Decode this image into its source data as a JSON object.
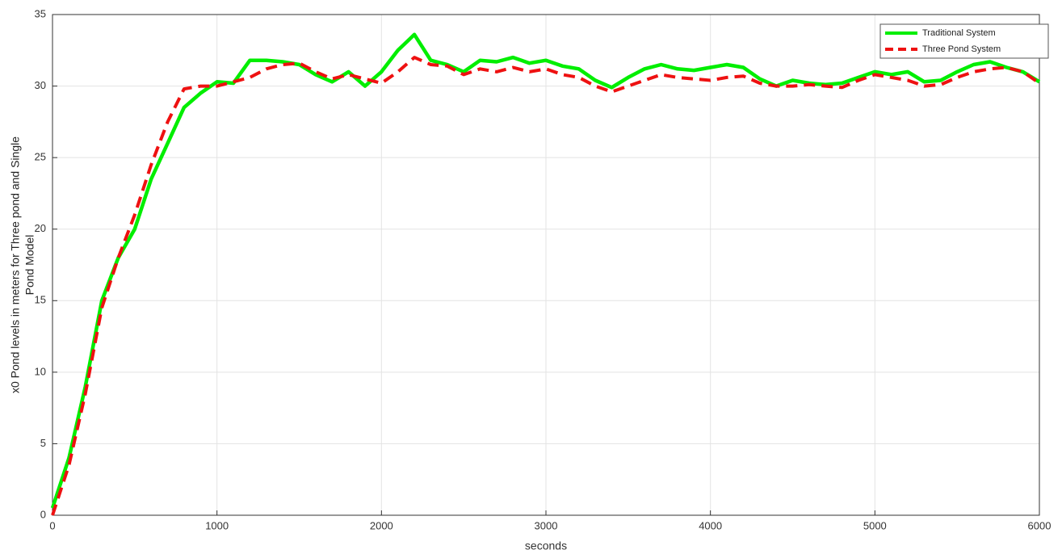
{
  "chart_data": {
    "type": "line",
    "xlabel": "seconds",
    "ylabel": [
      "x0 Pond levels in meters for Three pond and Single",
      "Pond Model"
    ],
    "x": [
      0,
      100,
      200,
      300,
      400,
      500,
      600,
      700,
      800,
      900,
      1000,
      1100,
      1200,
      1300,
      1400,
      1500,
      1600,
      1700,
      1800,
      1900,
      2000,
      2100,
      2200,
      2300,
      2400,
      2500,
      2600,
      2700,
      2800,
      2900,
      3000,
      3100,
      3200,
      3300,
      3400,
      3500,
      3600,
      3700,
      3800,
      3900,
      4000,
      4100,
      4200,
      4300,
      4400,
      4500,
      4600,
      4700,
      4800,
      4900,
      5000,
      5100,
      5200,
      5300,
      5400,
      5500,
      5600,
      5700,
      5800,
      5900,
      6000
    ],
    "series": [
      {
        "name": "Traditional System",
        "color": "#00ee00",
        "dash": false,
        "values": [
          0.5,
          4,
          9,
          15,
          18,
          20,
          23.5,
          26,
          28.5,
          29.5,
          30.3,
          30.2,
          31.8,
          31.8,
          31.7,
          31.5,
          30.8,
          30.3,
          31,
          30,
          31,
          32.5,
          33.6,
          31.8,
          31.5,
          31,
          31.8,
          31.7,
          32,
          31.6,
          31.8,
          31.4,
          31.2,
          30.4,
          29.9,
          30.6,
          31.2,
          31.5,
          31.2,
          31.1,
          31.3,
          31.5,
          31.3,
          30.5,
          30,
          30.4,
          30.2,
          30.1,
          30.2,
          30.6,
          31,
          30.8,
          31,
          30.3,
          30.4,
          31,
          31.5,
          31.7,
          31.3,
          31,
          30.3
        ]
      },
      {
        "name": "Three Pond System",
        "color": "#ee1111",
        "dash": true,
        "values": [
          0,
          3.5,
          8.5,
          14.5,
          18,
          21,
          24.5,
          27.5,
          29.8,
          30,
          30,
          30.3,
          30.6,
          31.2,
          31.5,
          31.6,
          31,
          30.5,
          30.8,
          30.5,
          30.2,
          31,
          32,
          31.5,
          31.4,
          30.8,
          31.2,
          31,
          31.3,
          31,
          31.2,
          30.8,
          30.6,
          30,
          29.6,
          30,
          30.4,
          30.8,
          30.6,
          30.5,
          30.4,
          30.6,
          30.7,
          30.2,
          30,
          30,
          30.1,
          30,
          29.9,
          30.4,
          30.8,
          30.6,
          30.4,
          30,
          30.1,
          30.6,
          31,
          31.2,
          31.3,
          31,
          30.2
        ]
      }
    ],
    "xlim": [
      0,
      6000
    ],
    "xticks": [
      0,
      1000,
      2000,
      3000,
      4000,
      5000,
      6000
    ],
    "ylim": [
      0,
      35
    ],
    "yticks": [
      0,
      5,
      10,
      15,
      20,
      25,
      30,
      35
    ],
    "grid": true,
    "legend": "top-right"
  }
}
